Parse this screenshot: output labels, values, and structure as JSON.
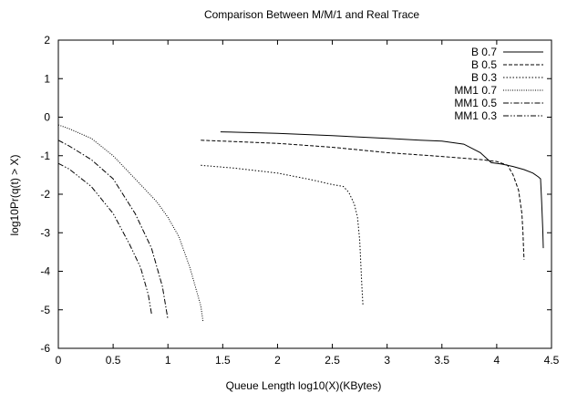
{
  "chart_data": {
    "type": "line",
    "title": "Comparison Between M/M/1 and Real Trace",
    "xlabel": "Queue Length log10(X)(KBytes)",
    "ylabel": "log10Pr(q(t) > X)",
    "xlim": [
      0,
      4.5
    ],
    "ylim": [
      -6,
      2
    ],
    "x_ticks": [
      "0",
      "0.5",
      "1",
      "1.5",
      "2",
      "2.5",
      "3",
      "3.5",
      "4",
      "4.5"
    ],
    "y_ticks": [
      "2",
      "1",
      "0",
      "-1",
      "-2",
      "-3",
      "-4",
      "-5",
      "-6"
    ],
    "grid": false,
    "legend_position": "top-right",
    "series": [
      {
        "name": "B 0.7",
        "dash": "solid",
        "color": "#000000",
        "x": [
          1.48,
          2.0,
          2.5,
          3.0,
          3.3,
          3.5,
          3.7,
          3.85,
          3.95,
          4.05,
          4.15,
          4.25,
          4.33,
          4.38,
          4.4,
          4.41,
          4.42,
          4.425
        ],
        "y": [
          -0.38,
          -0.42,
          -0.48,
          -0.55,
          -0.6,
          -0.62,
          -0.7,
          -0.92,
          -1.18,
          -1.22,
          -1.28,
          -1.36,
          -1.45,
          -1.55,
          -1.6,
          -2.2,
          -2.9,
          -3.4
        ]
      },
      {
        "name": "B 0.5",
        "dash": "dashed",
        "color": "#000000",
        "x": [
          1.3,
          2.0,
          2.5,
          3.0,
          3.5,
          3.85,
          4.0,
          4.1,
          4.15,
          4.2,
          4.23,
          4.24,
          4.245,
          4.25
        ],
        "y": [
          -0.6,
          -0.68,
          -0.78,
          -0.92,
          -1.02,
          -1.1,
          -1.15,
          -1.25,
          -1.5,
          -1.9,
          -2.5,
          -3.0,
          -3.4,
          -3.7
        ]
      },
      {
        "name": "B 0.3",
        "dash": "dotted",
        "color": "#000000",
        "x": [
          1.3,
          1.6,
          2.0,
          2.3,
          2.5,
          2.6,
          2.65,
          2.7,
          2.73,
          2.75,
          2.76,
          2.77,
          2.78
        ],
        "y": [
          -1.25,
          -1.32,
          -1.45,
          -1.62,
          -1.75,
          -1.8,
          -1.95,
          -2.25,
          -2.6,
          -3.2,
          -3.8,
          -4.4,
          -4.9
        ]
      },
      {
        "name": "MM1 0.7",
        "dash": "fine-dotted",
        "color": "#000000",
        "x": [
          0.0,
          0.1,
          0.3,
          0.5,
          0.7,
          0.9,
          1.0,
          1.1,
          1.2,
          1.25,
          1.3,
          1.32
        ],
        "y": [
          -0.2,
          -0.3,
          -0.55,
          -1.0,
          -1.6,
          -2.2,
          -2.6,
          -3.1,
          -3.9,
          -4.4,
          -4.9,
          -5.3
        ]
      },
      {
        "name": "MM1 0.5",
        "dash": "dash-dot",
        "color": "#000000",
        "x": [
          0.0,
          0.1,
          0.3,
          0.5,
          0.7,
          0.85,
          0.95,
          1.0
        ],
        "y": [
          -0.6,
          -0.75,
          -1.1,
          -1.6,
          -2.5,
          -3.4,
          -4.4,
          -5.25
        ]
      },
      {
        "name": "MM1 0.3",
        "dash": "dash-dot-dot",
        "color": "#000000",
        "x": [
          0.0,
          0.1,
          0.3,
          0.5,
          0.65,
          0.75,
          0.82,
          0.85
        ],
        "y": [
          -1.2,
          -1.35,
          -1.8,
          -2.5,
          -3.3,
          -3.9,
          -4.6,
          -5.1
        ]
      }
    ]
  }
}
